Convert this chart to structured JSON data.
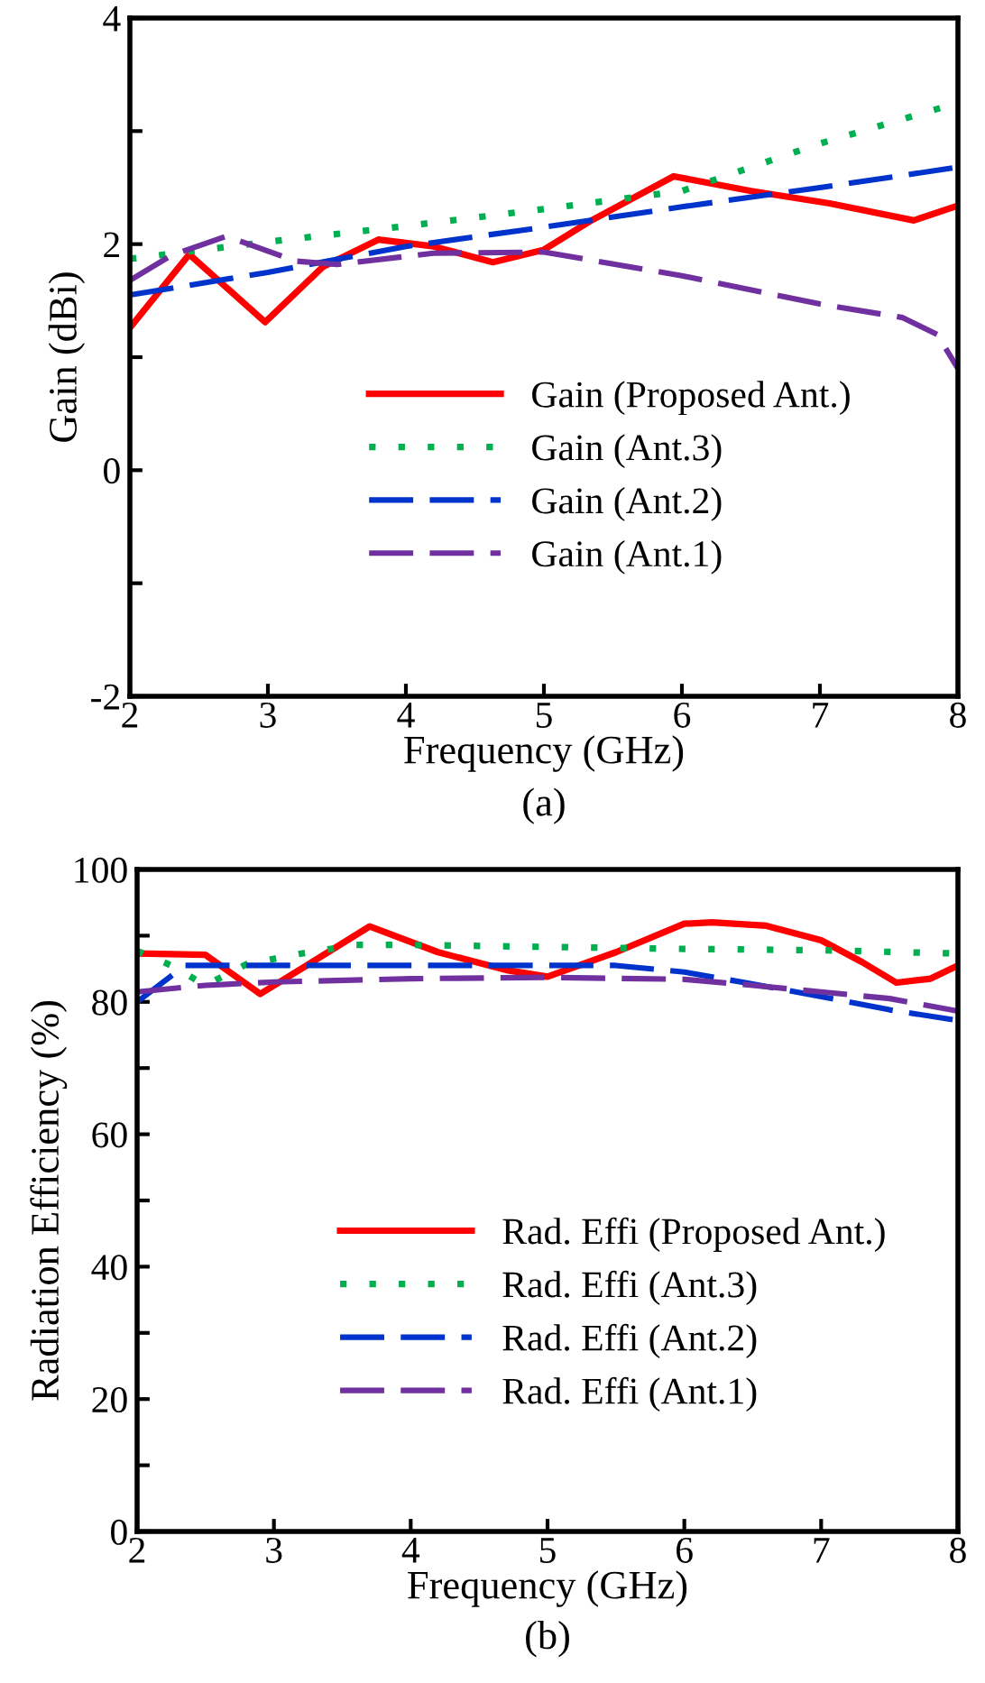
{
  "chart_data": [
    {
      "type": "line",
      "xlabel": "Frequency (GHz)",
      "ylabel": "Gain (dBi)",
      "annotations": [
        "(a)"
      ],
      "xlim": [
        2,
        8
      ],
      "xticks": [
        2,
        3,
        4,
        5,
        6,
        7,
        8
      ],
      "ylim": [
        -2,
        4
      ],
      "yticks": [
        -2,
        {
          "value": -1,
          "label": null
        },
        0,
        {
          "value": 1,
          "label": null
        },
        2,
        {
          "value": 3,
          "label": null
        },
        4
      ],
      "legend": "bottom",
      "grid": false,
      "series": [
        {
          "name": "Gain (Proposed Ant.)",
          "color": "#ff0000",
          "line_style": "solid",
          "x": [
            2,
            2.43,
            2.98,
            3.4,
            3.8,
            4.2,
            4.63,
            5,
            5.33,
            5.94,
            6.5,
            7.07,
            7.68,
            8
          ],
          "values": [
            1.26,
            1.91,
            1.31,
            1.8,
            2.04,
            1.98,
            1.84,
            1.95,
            2.2,
            2.6,
            2.47,
            2.36,
            2.21,
            2.34
          ]
        },
        {
          "name": "Gain (Ant.3)",
          "color": "#00b050",
          "line_style": "dotted",
          "x": [
            2,
            3,
            4,
            5,
            6,
            7,
            8
          ],
          "values": [
            1.87,
            2.02,
            2.16,
            2.31,
            2.47,
            2.89,
            3.25
          ]
        },
        {
          "name": "Gain (Ant.2)",
          "color": "#0033cc",
          "line_style": "dashed",
          "x": [
            2,
            3,
            4,
            5,
            6,
            7,
            8
          ],
          "values": [
            1.55,
            1.75,
            1.98,
            2.15,
            2.33,
            2.5,
            2.68
          ]
        },
        {
          "name": "Gain (Ant.1)",
          "color": "#7030a0",
          "line_style": "dashed",
          "x": [
            2,
            2.3,
            2.7,
            3.2,
            3.5,
            4.2,
            5,
            6,
            7,
            7.6,
            7.85,
            8
          ],
          "values": [
            1.68,
            1.9,
            2.07,
            1.85,
            1.82,
            1.92,
            1.93,
            1.72,
            1.47,
            1.35,
            1.2,
            0.9
          ]
        }
      ]
    },
    {
      "type": "line",
      "xlabel": "Frequency (GHz)",
      "ylabel": "Radiation Efficiency (%)",
      "annotations": [
        "(b)"
      ],
      "xlim": [
        2,
        8
      ],
      "xticks": [
        2,
        3,
        4,
        5,
        6,
        7,
        8
      ],
      "ylim": [
        0,
        100
      ],
      "yticks": [
        0,
        {
          "value": 10,
          "label": null
        },
        20,
        {
          "value": 30,
          "label": null
        },
        40,
        {
          "value": 50,
          "label": null
        },
        60,
        {
          "value": 70,
          "label": null
        },
        80,
        {
          "value": 90,
          "label": null
        },
        100
      ],
      "legend": "bottom",
      "grid": false,
      "series": [
        {
          "name": "Rad. Effi (Proposed Ant.)",
          "color": "#ff0000",
          "line_style": "solid",
          "x": [
            2,
            2.5,
            2.9,
            3.2,
            3.7,
            4.2,
            4.7,
            5,
            5.5,
            6,
            6.2,
            6.6,
            7,
            7.3,
            7.55,
            7.8,
            8
          ],
          "values": [
            87.3,
            87.1,
            81.2,
            85,
            91.4,
            87.5,
            84.8,
            83.8,
            87.5,
            91.8,
            92,
            91.5,
            89.3,
            86,
            82.9,
            83.5,
            85.5
          ]
        },
        {
          "name": "Rad. Effi (Ant.3)",
          "color": "#00b050",
          "line_style": "dotted",
          "x": [
            2,
            2.25,
            2.5,
            2.8,
            3.2,
            3.6,
            4,
            5,
            6,
            7,
            8
          ],
          "values": [
            87.7,
            85.5,
            82.5,
            85.7,
            87.3,
            88.6,
            88.6,
            88.3,
            88,
            87.8,
            87.3
          ]
        },
        {
          "name": "Rad. Effi (Ant.2)",
          "color": "#0033cc",
          "line_style": "dashed",
          "x": [
            2,
            2.35,
            3,
            4,
            5,
            5.5,
            6,
            6.5,
            7,
            7.5,
            8
          ],
          "values": [
            80,
            85.5,
            85.5,
            85.5,
            85.5,
            85.5,
            84.5,
            82.7,
            80.8,
            78.8,
            77.2
          ]
        },
        {
          "name": "Rad. Effi (Ant.1)",
          "color": "#7030a0",
          "line_style": "dashed",
          "x": [
            2,
            2.5,
            3,
            4,
            5,
            6,
            6.5,
            7,
            7.5,
            8
          ],
          "values": [
            81.5,
            82.5,
            83,
            83.5,
            83.7,
            83.4,
            82.5,
            81.5,
            80.5,
            78.6
          ]
        }
      ]
    }
  ]
}
